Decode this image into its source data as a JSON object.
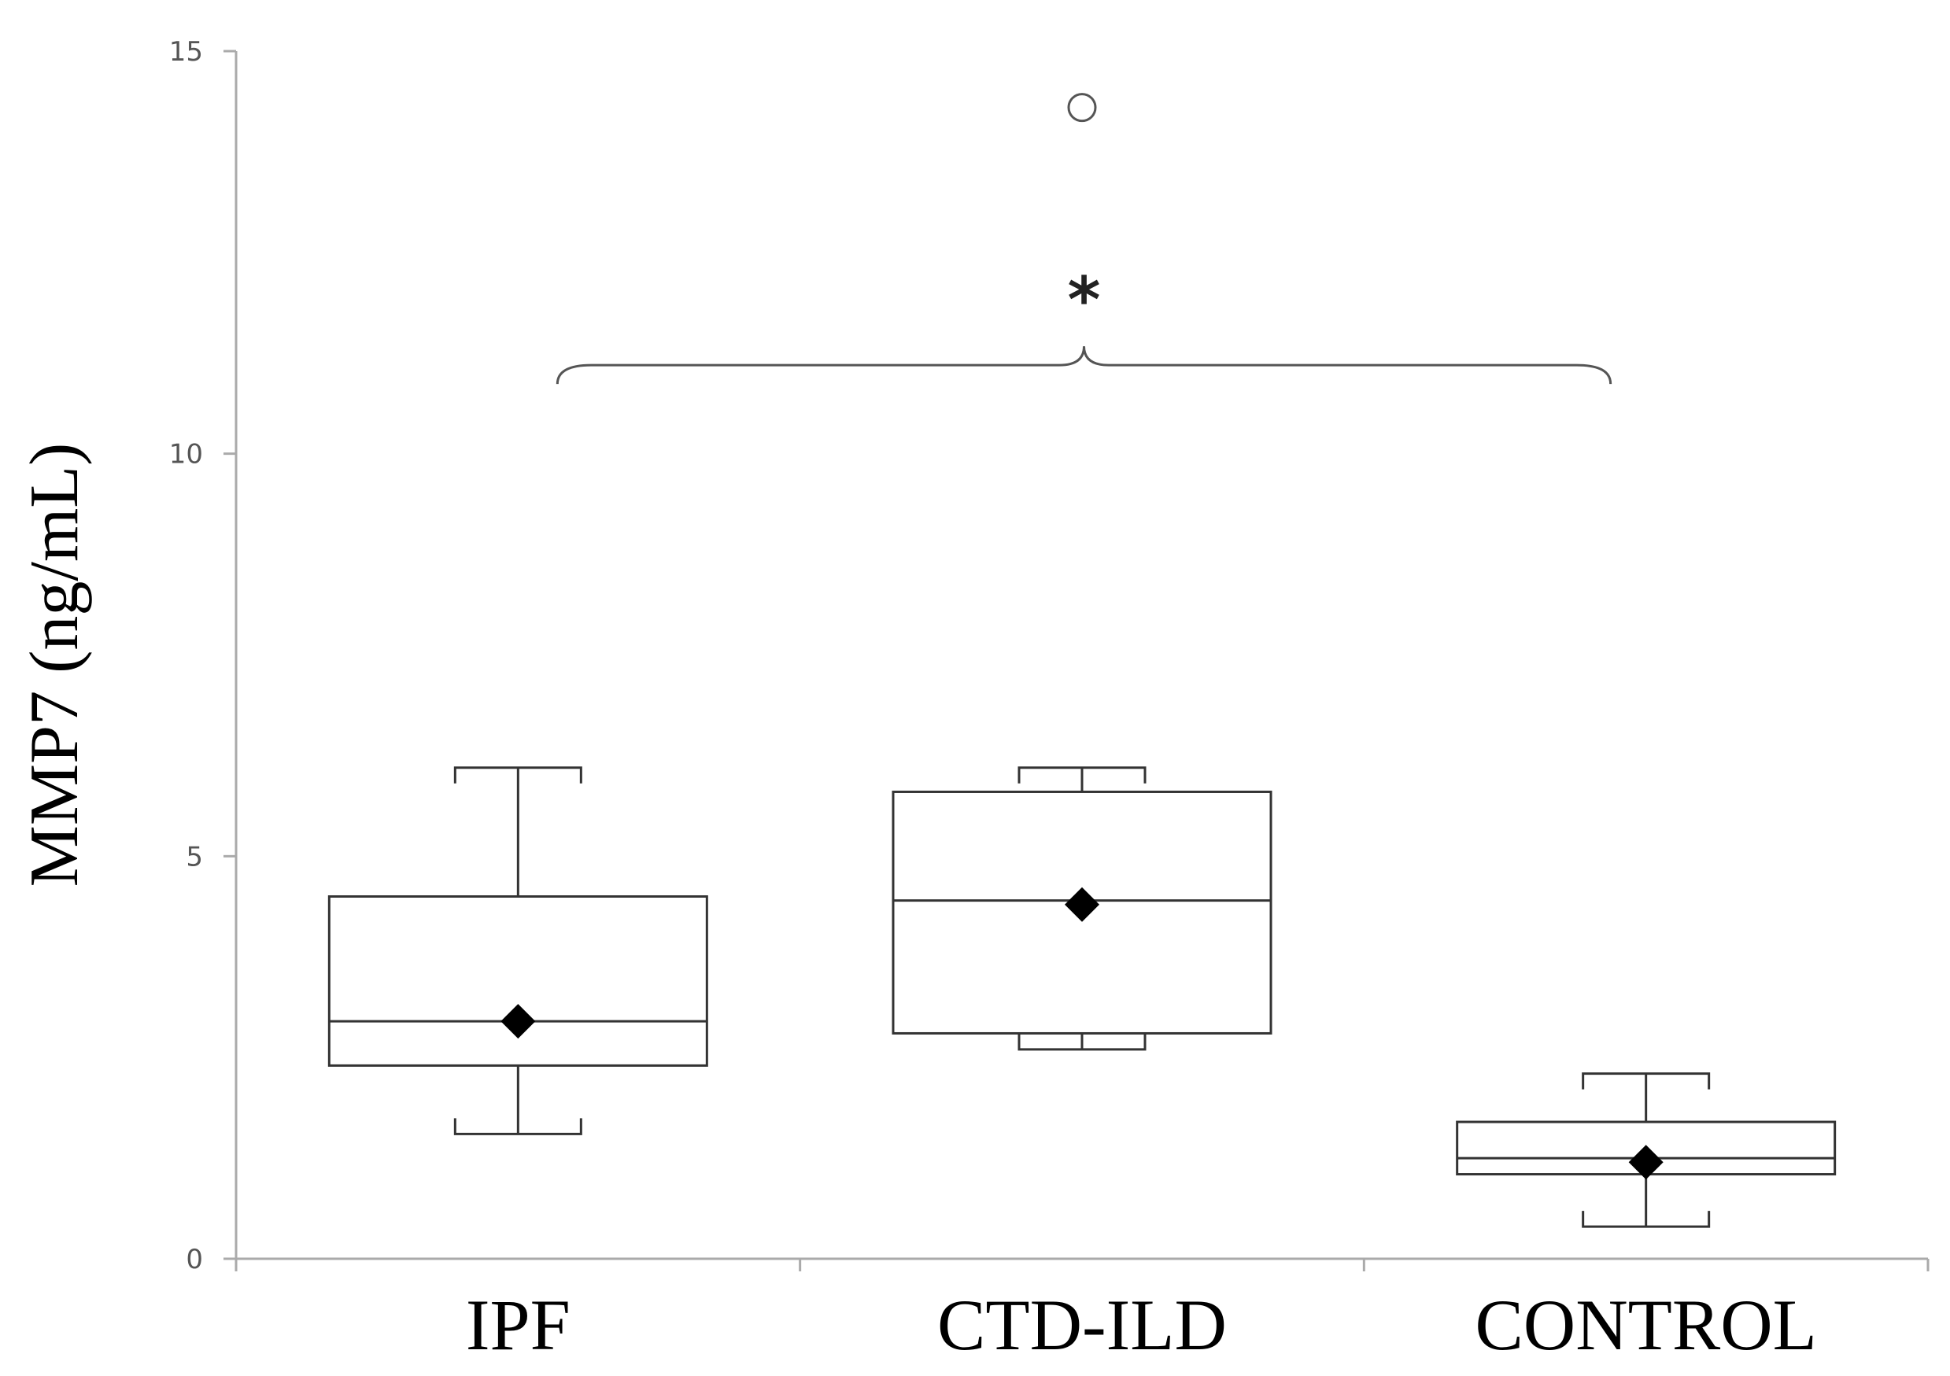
{
  "chart_data": {
    "type": "box",
    "ylabel": "MMP7 (ng/mL)",
    "xlabel": "",
    "ylim": [
      0,
      15
    ],
    "yticks": [
      0,
      5,
      10,
      15
    ],
    "grid": false,
    "categories": [
      "IPF",
      "CTD-ILD",
      "CONTROL"
    ],
    "boxes": [
      {
        "category": "IPF",
        "whisker_low": 1.55,
        "q1": 2.4,
        "median": 2.95,
        "q3": 4.5,
        "whisker_high": 6.1,
        "mean": 2.95,
        "outliers": []
      },
      {
        "category": "CTD-ILD",
        "whisker_low": 2.6,
        "q1": 2.8,
        "median": 4.45,
        "q3": 5.8,
        "whisker_high": 6.1,
        "mean": 4.4,
        "outliers": [
          14.3
        ]
      },
      {
        "category": "CONTROL",
        "whisker_low": 0.4,
        "q1": 1.05,
        "median": 1.25,
        "q3": 1.7,
        "whisker_high": 2.3,
        "mean": 1.2,
        "outliers": []
      }
    ],
    "significance": {
      "label": "*",
      "from": "IPF",
      "to": "CONTROL",
      "y": 11.1
    },
    "colors": {
      "box_stroke": "#333333",
      "mean_marker": "#000000",
      "axis": "#aaaaaa",
      "outlier_stroke": "#555555"
    }
  }
}
